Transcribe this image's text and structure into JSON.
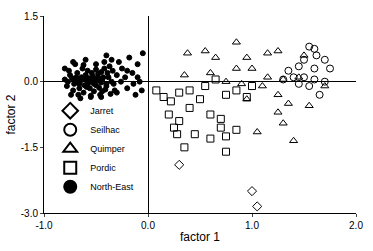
{
  "chart_data": {
    "type": "scatter",
    "x_label": "factor 1",
    "y_label": "factor 2",
    "xlim": [
      -1.0,
      2.0
    ],
    "ylim": [
      -3.0,
      1.5
    ],
    "xticks": [
      {
        "value": -1.0,
        "label": "-1.0"
      },
      {
        "value": 0.0,
        "label": "0.0"
      },
      {
        "value": 1.0,
        "label": "1.0"
      },
      {
        "value": 2.0,
        "label": "2.0"
      }
    ],
    "yticks": [
      {
        "value": -3.0,
        "label": "-3.0"
      },
      {
        "value": -1.5,
        "label": "-1.5"
      },
      {
        "value": 0.0,
        "label": "0.0"
      },
      {
        "value": 1.5,
        "label": "1.5"
      }
    ],
    "grid": false,
    "legend": "lower left",
    "series": [
      {
        "name": "Jarret",
        "color": "#000000",
        "marker": "diamond-open",
        "x": [
          0.3,
          1.0,
          1.05
        ],
        "y": [
          -1.9,
          -2.5,
          -2.85
        ]
      },
      {
        "name": "Seilhac",
        "color": "#000000",
        "marker": "circle-open",
        "x": [
          1.55,
          1.6,
          1.62,
          1.5,
          1.7,
          1.45,
          1.6,
          1.75,
          1.4,
          1.5,
          1.6,
          1.3,
          1.45,
          1.55,
          1.65,
          1.7,
          1.35
        ],
        "y": [
          0.8,
          0.75,
          0.6,
          0.5,
          0.5,
          0.35,
          0.3,
          0.3,
          0.1,
          0.1,
          0.05,
          0.05,
          -0.05,
          -0.1,
          -0.3,
          0.0,
          0.25
        ]
      },
      {
        "name": "Quimper",
        "color": "#000000",
        "marker": "triangle-up-open",
        "x": [
          0.38,
          0.55,
          0.65,
          0.85,
          0.95,
          1.15,
          1.25,
          1.5,
          0.85,
          1.0,
          1.15,
          1.3,
          0.9,
          1.1,
          1.25,
          1.35,
          1.25,
          1.3,
          1.55,
          1.4,
          1.05,
          0.95,
          0.6,
          0.35,
          1.45,
          1.7,
          0.75
        ],
        "y": [
          0.65,
          0.7,
          0.55,
          0.9,
          0.55,
          0.65,
          0.7,
          0.6,
          0.3,
          0.3,
          0.1,
          0.05,
          -0.05,
          -0.1,
          -0.3,
          -0.5,
          -0.7,
          -0.95,
          -0.55,
          -1.35,
          -1.15,
          -0.4,
          0.2,
          0.15,
          0.1,
          -0.1,
          0.0
        ]
      },
      {
        "name": "Pordic",
        "color": "#000000",
        "marker": "square-open",
        "x": [
          0.08,
          0.15,
          0.22,
          0.3,
          0.4,
          0.55,
          0.65,
          0.75,
          0.85,
          0.95,
          0.2,
          0.3,
          0.25,
          0.4,
          0.5,
          0.6,
          0.7,
          0.7,
          0.75,
          0.75,
          0.6,
          0.45,
          0.85,
          0.35,
          1.0,
          0.28
        ],
        "y": [
          -0.2,
          -0.35,
          -0.45,
          -0.25,
          -0.2,
          -0.1,
          0.05,
          -0.3,
          -0.2,
          -0.35,
          -0.75,
          -0.9,
          -1.05,
          -0.6,
          -0.4,
          -0.75,
          -0.85,
          -1.05,
          -1.25,
          -1.6,
          -1.3,
          -1.2,
          -1.1,
          -1.5,
          -0.1,
          -1.2
        ]
      },
      {
        "name": "North-East",
        "color": "#000000",
        "marker": "circle",
        "x": [
          -0.8,
          -0.78,
          -0.75,
          -0.72,
          -0.7,
          -0.68,
          -0.66,
          -0.64,
          -0.62,
          -0.6,
          -0.58,
          -0.56,
          -0.55,
          -0.53,
          -0.5,
          -0.48,
          -0.46,
          -0.44,
          -0.42,
          -0.4,
          -0.38,
          -0.35,
          -0.32,
          -0.3,
          -0.76,
          -0.71,
          -0.67,
          -0.63,
          -0.59,
          -0.57,
          -0.52,
          -0.49,
          -0.45,
          -0.41,
          -0.37,
          -0.33,
          -0.74,
          -0.69,
          -0.65,
          -0.61,
          -0.58,
          -0.54,
          -0.51,
          -0.47,
          -0.43,
          -0.39,
          -0.36,
          -0.8,
          -0.73,
          -0.66,
          -0.6,
          -0.55,
          -0.5,
          -0.45,
          -0.4,
          -0.62,
          -0.56,
          -0.52,
          -0.48,
          -0.44,
          -0.28,
          -0.25,
          -0.22,
          -0.2,
          -0.18,
          -0.15,
          -0.12,
          -0.1,
          -0.08,
          -0.05,
          -0.3,
          -0.35,
          -0.42,
          -0.5,
          -0.6,
          -0.7,
          -0.65,
          -0.55,
          -0.45,
          -0.26,
          -0.2,
          -0.14,
          -0.1,
          -0.06,
          -0.4,
          -0.34,
          -0.58,
          -0.68,
          -0.77,
          -0.72
        ],
        "y": [
          0.05,
          -0.1,
          0.15,
          -0.2,
          0.0,
          0.2,
          -0.05,
          0.1,
          -0.25,
          0.05,
          0.25,
          -0.15,
          0.0,
          0.12,
          -0.08,
          0.18,
          -0.3,
          0.05,
          0.3,
          -0.1,
          0.1,
          0.0,
          -0.2,
          0.15,
          0.25,
          -0.05,
          -0.3,
          0.3,
          -0.12,
          0.08,
          -0.22,
          0.03,
          0.22,
          -0.18,
          0.35,
          -0.05,
          -0.3,
          0.1,
          0.02,
          -0.08,
          -0.05,
          0.2,
          0.06,
          -0.14,
          0.1,
          0.2,
          -0.28,
          0.3,
          0.08,
          -0.15,
          0.15,
          -0.35,
          0.28,
          -0.02,
          -0.05,
          0.38,
          0.05,
          -0.05,
          0.1,
          -0.22,
          0.45,
          0.3,
          0.1,
          -0.15,
          0.55,
          0.2,
          -0.3,
          0.4,
          0.0,
          0.65,
          -0.25,
          0.5,
          0.45,
          0.4,
          0.5,
          0.4,
          -0.38,
          -0.32,
          -0.35,
          0.0,
          0.25,
          -0.05,
          0.1,
          -0.2,
          0.6,
          0.25,
          0.0,
          -0.02,
          0.0,
          0.45
        ]
      }
    ]
  }
}
